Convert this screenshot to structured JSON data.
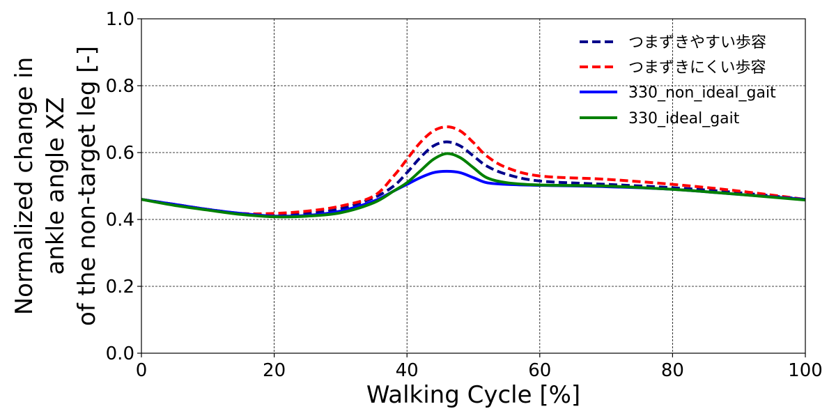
{
  "chart_data": {
    "type": "line",
    "xlabel": "Walking Cycle [%]",
    "ylabel_lines": [
      "Normalized change in",
      "ankle angle XZ",
      "of the non-target leg [-]"
    ],
    "xlim": [
      0,
      100
    ],
    "ylim": [
      0.0,
      1.0
    ],
    "xticks": [
      "0",
      "20",
      "40",
      "60",
      "80",
      "100"
    ],
    "yticks": [
      "0.0",
      "0.2",
      "0.4",
      "0.6",
      "0.8",
      "1.0"
    ],
    "xtick_values": [
      0,
      20,
      40,
      60,
      80,
      100
    ],
    "ytick_values": [
      0.0,
      0.2,
      0.4,
      0.6,
      0.8,
      1.0
    ],
    "grid": true,
    "legend_position": "top-right",
    "series": [
      {
        "name": "つまずきやすい歩容",
        "color": "#00008b",
        "style": "dashed",
        "x": [
          0,
          5,
          10,
          15,
          20,
          25,
          30,
          35,
          38,
          40,
          42,
          44,
          46,
          48,
          50,
          52,
          55,
          60,
          70,
          80,
          90,
          100
        ],
        "y": [
          0.46,
          0.445,
          0.43,
          0.418,
          0.413,
          0.418,
          0.432,
          0.465,
          0.5,
          0.54,
          0.585,
          0.62,
          0.632,
          0.62,
          0.59,
          0.56,
          0.535,
          0.515,
          0.505,
          0.495,
          0.48,
          0.46
        ]
      },
      {
        "name": "つまずきにくい歩容",
        "color": "#ff0000",
        "style": "dashed",
        "x": [
          0,
          5,
          10,
          15,
          20,
          25,
          30,
          35,
          38,
          40,
          42,
          44,
          46,
          48,
          50,
          52,
          55,
          60,
          70,
          80,
          90,
          100
        ],
        "y": [
          0.46,
          0.445,
          0.43,
          0.418,
          0.418,
          0.425,
          0.44,
          0.47,
          0.53,
          0.58,
          0.63,
          0.665,
          0.677,
          0.665,
          0.63,
          0.59,
          0.555,
          0.53,
          0.52,
          0.505,
          0.485,
          0.46
        ]
      },
      {
        "name": "330_non_ideal_gait",
        "color": "#0000ff",
        "style": "solid",
        "x": [
          0,
          5,
          10,
          15,
          20,
          25,
          30,
          35,
          38,
          40,
          42,
          44,
          46,
          48,
          50,
          52,
          55,
          60,
          70,
          80,
          90,
          100
        ],
        "y": [
          0.46,
          0.445,
          0.43,
          0.418,
          0.41,
          0.412,
          0.425,
          0.455,
          0.485,
          0.505,
          0.525,
          0.54,
          0.544,
          0.54,
          0.525,
          0.51,
          0.505,
          0.502,
          0.498,
          0.49,
          0.475,
          0.46
        ]
      },
      {
        "name": "330_ideal_gait",
        "color": "#008000",
        "style": "solid",
        "x": [
          0,
          5,
          10,
          15,
          20,
          25,
          30,
          35,
          38,
          40,
          42,
          44,
          46,
          48,
          50,
          52,
          55,
          60,
          70,
          80,
          90,
          100
        ],
        "y": [
          0.46,
          0.442,
          0.428,
          0.415,
          0.408,
          0.41,
          0.42,
          0.45,
          0.485,
          0.51,
          0.545,
          0.58,
          0.597,
          0.585,
          0.555,
          0.525,
          0.51,
          0.503,
          0.5,
          0.49,
          0.475,
          0.458
        ]
      }
    ]
  }
}
